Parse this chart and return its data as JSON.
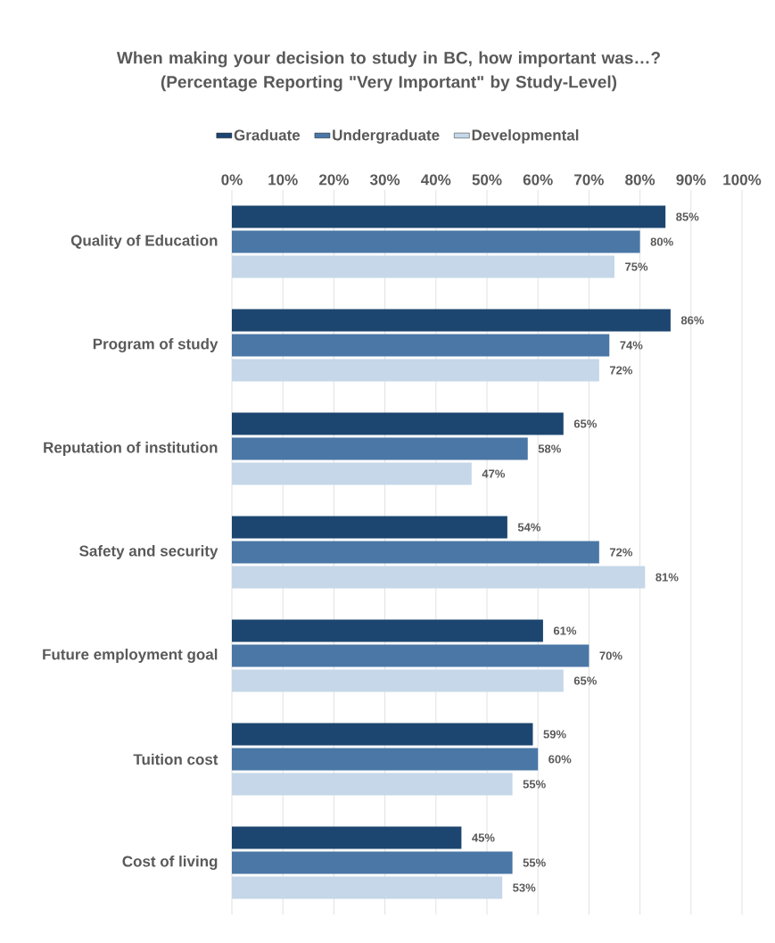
{
  "chart_data": {
    "type": "bar",
    "orientation": "horizontal",
    "title": "When making your decision to study in BC, how important was…?\n(Percentage Reporting \"Very Important\" by Study-Level)",
    "categories": [
      "Quality of Education",
      "Program of study",
      "Reputation of institution",
      "Safety and security",
      "Future employment goal",
      "Tuition cost",
      "Cost of living"
    ],
    "series": [
      {
        "name": "Graduate",
        "color": "#1c4670",
        "values": [
          85,
          86,
          65,
          54,
          61,
          59,
          45
        ],
        "value_labels": [
          "85%",
          "86%",
          "65%",
          "54%",
          "61%",
          "59%",
          "45%"
        ]
      },
      {
        "name": "Undergraduate",
        "color": "#4a77a6",
        "values": [
          80,
          74,
          58,
          72,
          70,
          60,
          55
        ],
        "value_labels": [
          "80%",
          "74%",
          "58%",
          "72%",
          "70%",
          "60%",
          "55%"
        ]
      },
      {
        "name": "Developmental",
        "color": "#c5d7e8",
        "values": [
          75,
          72,
          47,
          81,
          65,
          55,
          53
        ],
        "value_labels": [
          "75%",
          "72%",
          "47%",
          "81%",
          "65%",
          "55%",
          "53%"
        ]
      }
    ],
    "xlim": [
      0,
      100
    ],
    "xticks": [
      {
        "value": 0,
        "label": "0%"
      },
      {
        "value": 10,
        "label": "10%"
      },
      {
        "value": 20,
        "label": "20%"
      },
      {
        "value": 30,
        "label": "30%"
      },
      {
        "value": 40,
        "label": "40%"
      },
      {
        "value": 50,
        "label": "50%"
      },
      {
        "value": 60,
        "label": "60%"
      },
      {
        "value": 70,
        "label": "70%"
      },
      {
        "value": 80,
        "label": "80%"
      },
      {
        "value": 90,
        "label": "90%"
      },
      {
        "value": 100,
        "label": "100%"
      }
    ],
    "grid": "x",
    "legend": "top"
  }
}
